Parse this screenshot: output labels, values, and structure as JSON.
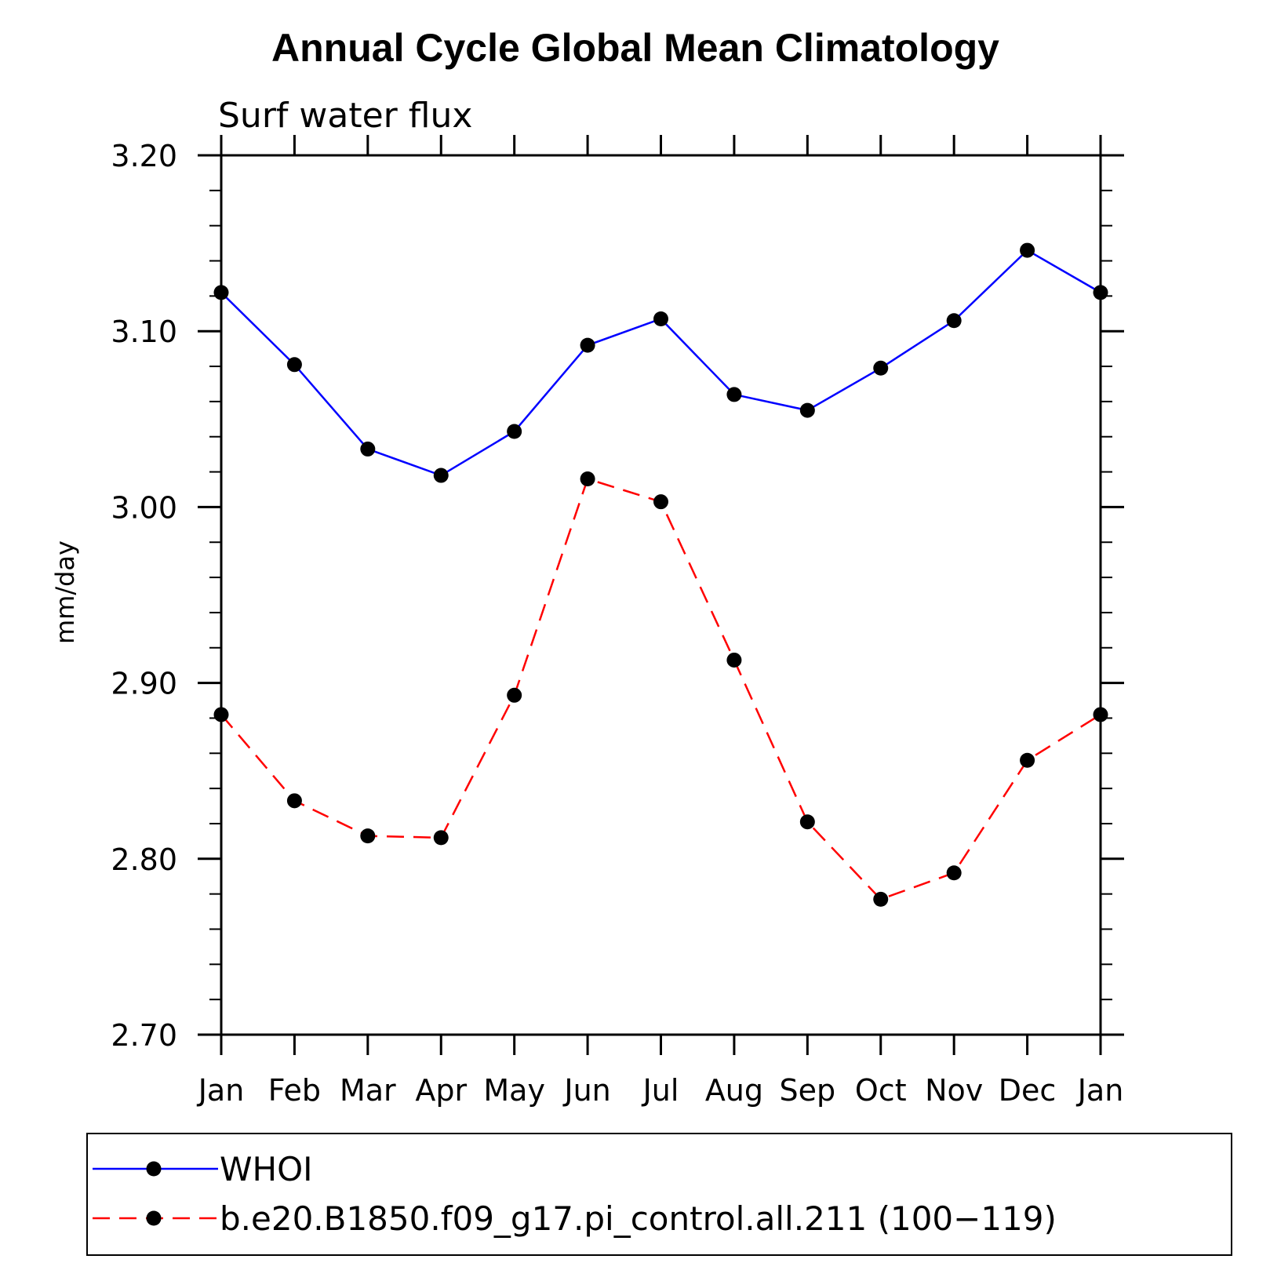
{
  "chart_data": {
    "type": "line",
    "title": "Annual Cycle Global Mean Climatology",
    "subtitle": "Surf water flux",
    "ylabel": "mm/day",
    "xlabel": "",
    "categories": [
      "Jan",
      "Feb",
      "Mar",
      "Apr",
      "May",
      "Jun",
      "Jul",
      "Aug",
      "Sep",
      "Oct",
      "Nov",
      "Dec",
      "Jan"
    ],
    "ylim": [
      2.7,
      3.2
    ],
    "yticks": [
      "2.70",
      "2.80",
      "2.90",
      "3.00",
      "3.10",
      "3.20"
    ],
    "legend_position": "bottom",
    "series": [
      {
        "name": "WHOI",
        "color": "#0000ff",
        "dash": "solid",
        "values": [
          3.122,
          3.081,
          3.033,
          3.018,
          3.043,
          3.092,
          3.107,
          3.064,
          3.055,
          3.079,
          3.106,
          3.146,
          3.122
        ]
      },
      {
        "name": "b.e20.B1850.f09_g17.pi_control.all.211 (100−119)",
        "color": "#ff0000",
        "dash": "dashed",
        "values": [
          2.882,
          2.833,
          2.813,
          2.812,
          2.893,
          3.016,
          3.003,
          2.913,
          2.821,
          2.777,
          2.792,
          2.856,
          2.882
        ]
      }
    ]
  }
}
